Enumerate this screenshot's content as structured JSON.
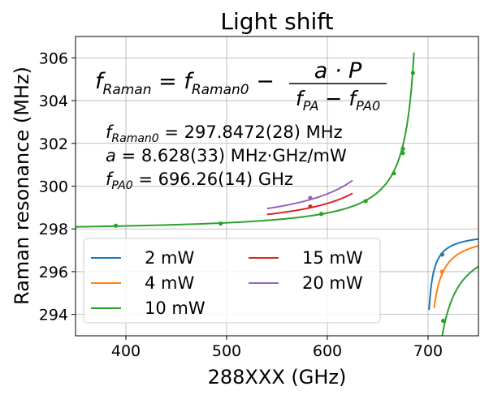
{
  "chart_data": {
    "type": "line",
    "title": "Light shift",
    "xlabel": "288XXX (GHz)",
    "ylabel": "Raman resonance (MHz)",
    "xlim": [
      350,
      750
    ],
    "ylim": [
      293,
      307
    ],
    "xticks": [
      400,
      500,
      600,
      700
    ],
    "yticks": [
      294,
      296,
      298,
      300,
      302,
      304,
      306
    ],
    "xtick_labels": [
      "400",
      "500",
      "600",
      "700"
    ],
    "ytick_labels": [
      "294",
      "296",
      "298",
      "300",
      "302",
      "304",
      "306"
    ],
    "grid": true,
    "legend_placement": "lower-left",
    "fit": {
      "f_raman0": 297.8472,
      "a": 8.628,
      "f_pa0": 696.26
    },
    "annotations": {
      "formula_lhs": "f",
      "formula_lhs_sub": "Raman",
      "formula_rhs1": "f",
      "formula_rhs1_sub": "Raman0",
      "formula_num": "a · P",
      "formula_den_f1": "f",
      "formula_den_sub1": "PA",
      "formula_den_f2": "f",
      "formula_den_sub2": "PA0",
      "param1_var": "f",
      "param1_sub": "Raman0",
      "param1_value": "297.8472(28) MHz",
      "param2_var": "a",
      "param2_value": "8.628(33) MHz·GHz/mW",
      "param3_var": "f",
      "param3_sub": "PA0",
      "param3_value": "696.26(14) GHz"
    },
    "series": [
      {
        "name": "2 mW",
        "power": 2,
        "color": "#1f77b4",
        "curve_ranges": [
          [
            701,
            750
          ]
        ],
        "points": [
          {
            "x": 714,
            "y": 296.8
          }
        ]
      },
      {
        "name": "4 mW",
        "power": 4,
        "color": "#ff7f0e",
        "curve_ranges": [
          [
            706,
            750
          ]
        ],
        "points": [
          {
            "x": 714,
            "y": 296.0
          }
        ]
      },
      {
        "name": "10 mW",
        "power": 10,
        "color": "#2ca02c",
        "curve_ranges": [
          [
            350,
            686
          ],
          [
            709,
            750
          ]
        ],
        "points": [
          {
            "x": 390,
            "y": 298.15
          },
          {
            "x": 494,
            "y": 298.25
          },
          {
            "x": 594,
            "y": 298.7
          },
          {
            "x": 638,
            "y": 299.3
          },
          {
            "x": 666,
            "y": 300.6
          },
          {
            "x": 675,
            "y": 301.55
          },
          {
            "x": 675,
            "y": 301.75
          },
          {
            "x": 685,
            "y": 305.3
          },
          {
            "x": 715,
            "y": 293.7
          }
        ]
      },
      {
        "name": "15 mW",
        "power": 15,
        "color": "#d62728",
        "curve_ranges": [
          [
            540,
            625
          ]
        ],
        "points": [
          {
            "x": 583,
            "y": 299.05
          }
        ]
      },
      {
        "name": "20 mW",
        "power": 20,
        "color": "#9467bd",
        "curve_ranges": [
          [
            540,
            625
          ]
        ],
        "points": [
          {
            "x": 583,
            "y": 299.45
          }
        ]
      }
    ]
  }
}
